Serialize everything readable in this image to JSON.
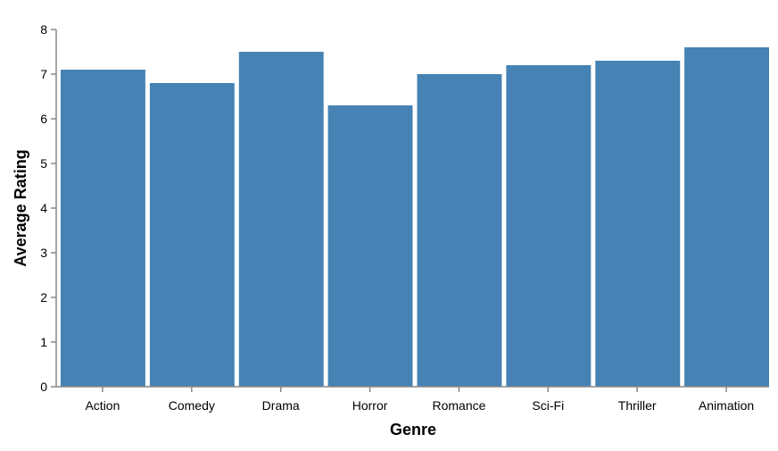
{
  "chart_data": {
    "type": "bar",
    "title": "",
    "xlabel": "Genre",
    "ylabel": "Average Rating",
    "categories": [
      "Action",
      "Comedy",
      "Drama",
      "Horror",
      "Romance",
      "Sci-Fi",
      "Thriller",
      "Animation"
    ],
    "values": [
      7.1,
      6.8,
      7.5,
      6.3,
      7.0,
      7.2,
      7.3,
      7.6
    ],
    "ylim": [
      0,
      8
    ],
    "yticks": [
      "0",
      "1",
      "2",
      "3",
      "4",
      "5",
      "6",
      "7",
      "8"
    ],
    "grid": false,
    "legend": "none",
    "colors": {
      "bar": "#4682b4",
      "axis": "#888888",
      "text": "#000000"
    }
  }
}
